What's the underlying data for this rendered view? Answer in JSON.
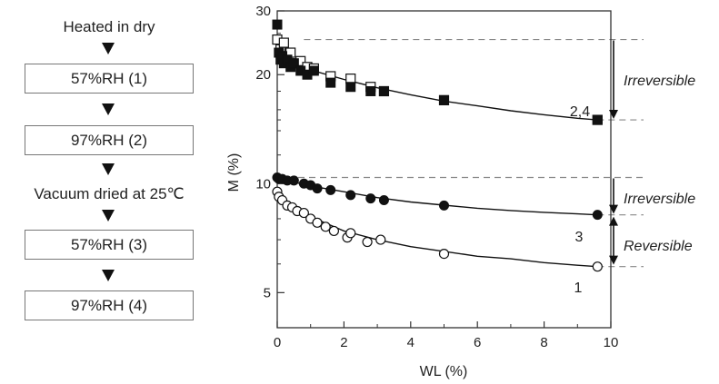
{
  "flow": {
    "steps": [
      {
        "kind": "text",
        "label": "Heated in dry"
      },
      {
        "kind": "box",
        "label": "57%RH (1)"
      },
      {
        "kind": "box",
        "label": "97%RH (2)"
      },
      {
        "kind": "text",
        "label": "Vacuum dried at 25℃"
      },
      {
        "kind": "box",
        "label": "57%RH (3)"
      },
      {
        "kind": "box",
        "label": "97%RH (4)"
      }
    ]
  },
  "chart_data": {
    "type": "scatter",
    "title": "",
    "xlabel": "WL (%)",
    "ylabel": "M (%)",
    "xlim": [
      0,
      10
    ],
    "ylim": [
      4,
      30
    ],
    "yscale": "log",
    "xticks": [
      "0",
      "2",
      "4",
      "6",
      "8",
      "10"
    ],
    "yticks": [
      "5",
      "10",
      "20",
      "30"
    ],
    "grid": false,
    "series": [
      {
        "name": "1",
        "marker": "open-circle",
        "x": [
          0.0,
          0.05,
          0.15,
          0.3,
          0.45,
          0.6,
          0.8,
          1.0,
          1.2,
          1.45,
          1.7,
          2.1,
          2.2,
          2.7,
          3.1,
          5.0,
          9.6
        ],
        "y": [
          9.5,
          9.2,
          9.0,
          8.7,
          8.6,
          8.4,
          8.3,
          8.0,
          7.8,
          7.6,
          7.4,
          7.1,
          7.3,
          6.9,
          7.0,
          6.4,
          5.9
        ],
        "curve": {
          "x": [
            0,
            0.5,
            1,
            2,
            3,
            4,
            5,
            6,
            7,
            8,
            9,
            9.6
          ],
          "y": [
            9.5,
            8.6,
            8.1,
            7.4,
            7.0,
            6.7,
            6.5,
            6.3,
            6.2,
            6.05,
            5.95,
            5.9
          ]
        }
      },
      {
        "name": "2",
        "marker": "open-square",
        "x": [
          0.0,
          0.1,
          0.2,
          0.3,
          0.4,
          0.5,
          0.7,
          0.9,
          1.1,
          1.6,
          2.2,
          2.8,
          3.2,
          5.0,
          9.6
        ],
        "y": [
          25.0,
          23.5,
          24.5,
          22.5,
          23.0,
          21.5,
          21.8,
          21.0,
          20.8,
          19.8,
          19.5,
          18.5,
          18.0,
          17.0,
          15.0
        ]
      },
      {
        "name": "3",
        "marker": "filled-circle",
        "x": [
          0.0,
          0.05,
          0.15,
          0.3,
          0.5,
          0.8,
          1.0,
          1.2,
          1.6,
          2.2,
          2.8,
          3.2,
          5.0,
          9.6
        ],
        "y": [
          10.4,
          10.3,
          10.3,
          10.2,
          10.2,
          10.0,
          9.9,
          9.7,
          9.6,
          9.3,
          9.1,
          9.0,
          8.7,
          8.2
        ],
        "curve": {
          "x": [
            0,
            0.5,
            1,
            2,
            3,
            4,
            5,
            6,
            7,
            8,
            9,
            9.6
          ],
          "y": [
            10.4,
            10.1,
            9.85,
            9.5,
            9.15,
            8.9,
            8.72,
            8.55,
            8.43,
            8.33,
            8.25,
            8.2
          ]
        }
      },
      {
        "name": "4",
        "marker": "filled-square",
        "x": [
          0.0,
          0.05,
          0.1,
          0.15,
          0.2,
          0.3,
          0.4,
          0.5,
          0.7,
          0.9,
          1.1,
          1.6,
          2.2,
          2.8,
          3.2,
          5.0,
          9.6
        ],
        "y": [
          27.5,
          23.0,
          22.0,
          22.5,
          21.5,
          22.0,
          21.0,
          21.5,
          20.5,
          20.0,
          20.5,
          19.0,
          18.5,
          18.0,
          18.0,
          17.0,
          15.0
        ],
        "curve": {
          "x": [
            0,
            0.5,
            1,
            2,
            3,
            4,
            5,
            6,
            7,
            8,
            9,
            9.6
          ],
          "y": [
            22.6,
            21.4,
            20.6,
            19.4,
            18.4,
            17.6,
            16.9,
            16.4,
            15.9,
            15.5,
            15.15,
            15.0
          ]
        }
      }
    ],
    "curve_labels": [
      "2,4",
      "3",
      "1"
    ],
    "reference_levels": [
      25.0,
      15.0,
      10.4,
      8.2,
      5.9
    ],
    "annotations": [
      "Irreversible",
      "Irreversible",
      "Reversible"
    ],
    "colors": {
      "ink": "#111111",
      "dashed": "#888888",
      "frame": "#333333"
    }
  }
}
